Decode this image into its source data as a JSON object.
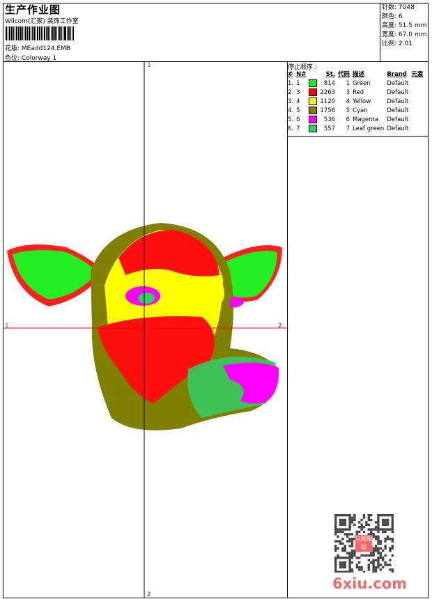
{
  "header": {
    "title": "生产作业图",
    "company": "Wilcom(汇家) 装饰工作室",
    "design_label": "花版:",
    "design_value": "MEadd124.EMB",
    "colorway_label": "色位:",
    "colorway_value": "Colorway 1"
  },
  "stats": [
    {
      "label": "针数:",
      "value": "7048"
    },
    {
      "label": "颜色:",
      "value": "6"
    },
    {
      "label": "高度:",
      "value": "51.5 mm"
    },
    {
      "label": "宽度:",
      "value": "67.0 mm"
    },
    {
      "label": "比例:",
      "value": "2.01"
    }
  ],
  "stop_sequence": {
    "title": "停止顺序 :",
    "columns": [
      "#",
      "N#",
      "St.",
      "代码",
      "描述",
      "Brand",
      "元素"
    ],
    "rows": [
      {
        "idx": "1.",
        "n": "1",
        "color": "#00ff00",
        "st": "814",
        "code": "1",
        "desc": "Green",
        "brand": "Default"
      },
      {
        "idx": "2.",
        "n": "3",
        "color": "#ff0000",
        "st": "2263",
        "code": "3",
        "desc": "Red",
        "brand": "Default"
      },
      {
        "idx": "3.",
        "n": "4",
        "color": "#ffff00",
        "st": "1120",
        "code": "4",
        "desc": "Yellow",
        "brand": "Default"
      },
      {
        "idx": "4.",
        "n": "5",
        "color": "#808000",
        "st": "1756",
        "code": "5",
        "desc": "Cyan",
        "brand": "Default"
      },
      {
        "idx": "5.",
        "n": "6",
        "color": "#ff00ff",
        "st": "536",
        "code": "6",
        "desc": "Magenta",
        "brand": "Default"
      },
      {
        "idx": "6.",
        "n": "7",
        "color": "#33cc66",
        "st": "557",
        "code": "7",
        "desc": "Leaf green",
        "brand": "Default"
      }
    ]
  },
  "axes": {
    "top": "1",
    "bottom": "2",
    "left": "1",
    "right": "2"
  },
  "watermark": {
    "text": "6xiu.com",
    "seal": "以图服版"
  }
}
